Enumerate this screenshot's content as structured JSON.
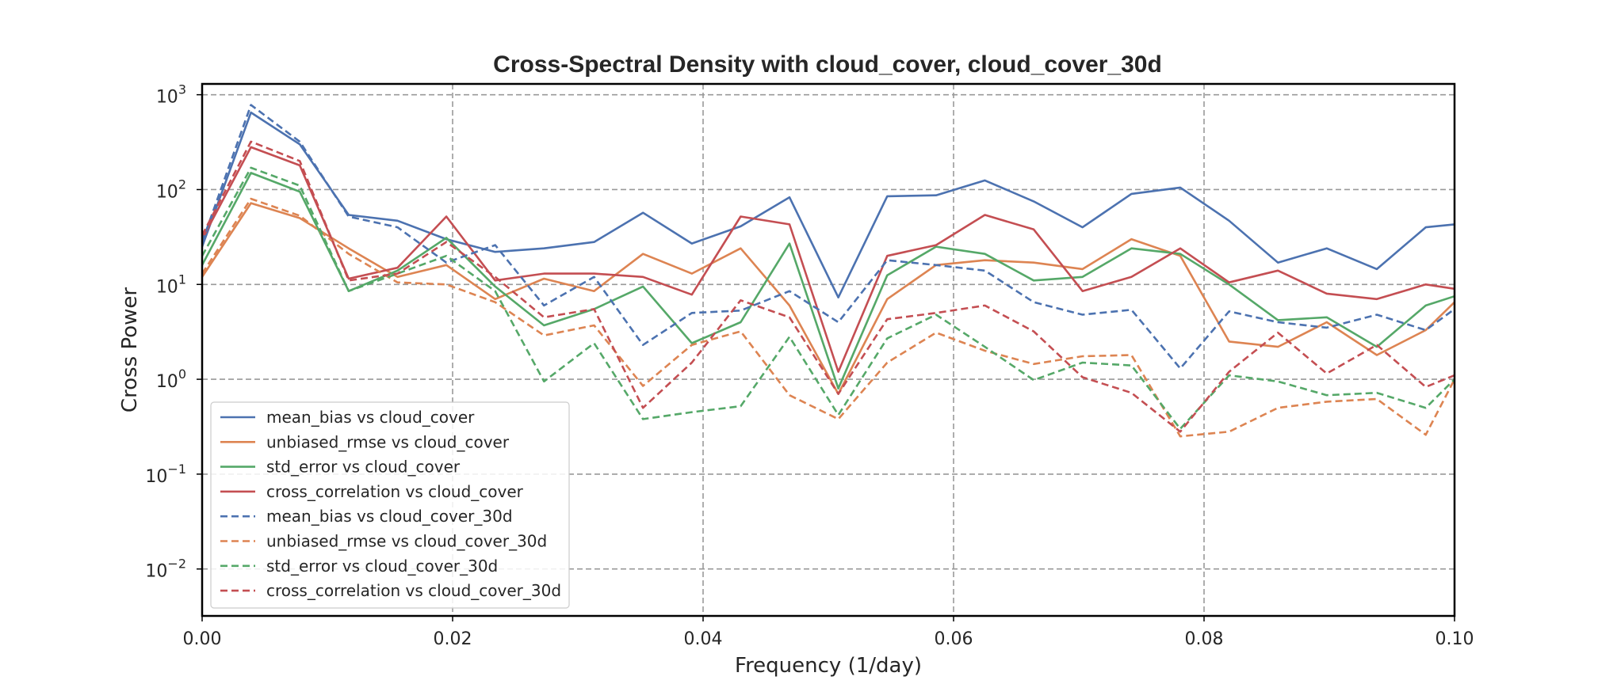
{
  "chart_data": {
    "type": "line",
    "title": "Cross-Spectral Density with cloud_cover, cloud_cover_30d",
    "xlabel": "Frequency (1/day)",
    "ylabel": "Cross Power",
    "xlim": [
      0,
      0.1
    ],
    "ylim": [
      0.0032,
      1300
    ],
    "yscale": "log",
    "grid": true,
    "legend_position": "lower-left",
    "x_ticks": [
      {
        "value": 0.0,
        "label": "0.00"
      },
      {
        "value": 0.02,
        "label": "0.02"
      },
      {
        "value": 0.04,
        "label": "0.04"
      },
      {
        "value": 0.06,
        "label": "0.06"
      },
      {
        "value": 0.08,
        "label": "0.08"
      },
      {
        "value": 0.1,
        "label": "0.10"
      }
    ],
    "y_ticks": [
      {
        "value": 0.01,
        "base": "10",
        "exp": "−2"
      },
      {
        "value": 0.1,
        "base": "10",
        "exp": "−1"
      },
      {
        "value": 1,
        "base": "10",
        "exp": "0"
      },
      {
        "value": 10,
        "base": "10",
        "exp": "1"
      },
      {
        "value": 100,
        "base": "10",
        "exp": "2"
      },
      {
        "value": 1000,
        "base": "10",
        "exp": "3"
      }
    ],
    "x": [
      0.0,
      0.0039,
      0.0078,
      0.0117,
      0.0156,
      0.0195,
      0.0234,
      0.0273,
      0.0313,
      0.0352,
      0.0391,
      0.043,
      0.0469,
      0.0508,
      0.0547,
      0.0586,
      0.0625,
      0.0664,
      0.0703,
      0.0742,
      0.0781,
      0.082,
      0.0859,
      0.0898,
      0.0938,
      0.0977,
      0.1
    ],
    "series": [
      {
        "name": "mean_bias vs cloud_cover",
        "color": "#4c72b0",
        "dash": "solid",
        "values": [
          25,
          650,
          300,
          54,
          47,
          30,
          22,
          24,
          28,
          57,
          27,
          41,
          83,
          7.3,
          85,
          87,
          125,
          75,
          40,
          90,
          105,
          47,
          17,
          24,
          14.5,
          40,
          43
        ]
      },
      {
        "name": "unbiased_rmse vs cloud_cover",
        "color": "#dd8452",
        "dash": "solid",
        "values": [
          12,
          72,
          50,
          24,
          12,
          16,
          7,
          11.5,
          8.5,
          21,
          13,
          24,
          6,
          0.7,
          7,
          16,
          18,
          17,
          14.5,
          30,
          20,
          2.5,
          2.2,
          4,
          1.8,
          3.3,
          6.5
        ]
      },
      {
        "name": "std_error vs cloud_cover",
        "color": "#55a868",
        "dash": "solid",
        "values": [
          16,
          150,
          95,
          8.5,
          14,
          31,
          9.5,
          3.7,
          5.5,
          9.5,
          2.4,
          4,
          27,
          0.8,
          12.5,
          25,
          21,
          11,
          12,
          24,
          21,
          10,
          4.2,
          4.5,
          2.2,
          6,
          7.5
        ]
      },
      {
        "name": "cross_correlation vs cloud_cover",
        "color": "#c44e52",
        "dash": "solid",
        "values": [
          30,
          280,
          180,
          11.5,
          15,
          52,
          11,
          13,
          13,
          12,
          7.8,
          52,
          43,
          1.2,
          20,
          26,
          54,
          38,
          8.5,
          12,
          24,
          10.5,
          14,
          8,
          7,
          10,
          9
        ]
      },
      {
        "name": "mean_bias vs cloud_cover_30d",
        "color": "#4c72b0",
        "dash": "dashed",
        "values": [
          28,
          780,
          320,
          52,
          40,
          17,
          26,
          6,
          12,
          2.3,
          5,
          5.3,
          8.5,
          4,
          18,
          16,
          14,
          6.5,
          4.8,
          5.4,
          1.3,
          5.2,
          4,
          3.5,
          4.8,
          3.3,
          5.5
        ]
      },
      {
        "name": "unbiased_rmse vs cloud_cover_30d",
        "color": "#dd8452",
        "dash": "dashed",
        "values": [
          13,
          80,
          53,
          21,
          10.5,
          10,
          6.5,
          2.9,
          3.7,
          0.85,
          2.3,
          3.2,
          0.68,
          0.38,
          1.5,
          3.1,
          2,
          1.45,
          1.75,
          1.8,
          0.25,
          0.28,
          0.5,
          0.58,
          0.62,
          0.26,
          1
        ]
      },
      {
        "name": "std_error vs cloud_cover_30d",
        "color": "#55a868",
        "dash": "dashed",
        "values": [
          20,
          170,
          110,
          8.5,
          13,
          20,
          8.5,
          0.95,
          2.4,
          0.38,
          0.45,
          0.52,
          2.8,
          0.42,
          2.7,
          4.8,
          2.2,
          0.98,
          1.5,
          1.4,
          0.3,
          1.1,
          0.95,
          0.68,
          0.72,
          0.5,
          1
        ]
      },
      {
        "name": "cross_correlation vs cloud_cover_30d",
        "color": "#c44e52",
        "dash": "dashed",
        "values": [
          33,
          320,
          200,
          11,
          13,
          28,
          12,
          4.5,
          5.5,
          0.5,
          1.5,
          6.8,
          4.5,
          0.7,
          4.3,
          5,
          6,
          3.2,
          1.05,
          0.72,
          0.28,
          1.2,
          3.1,
          1.15,
          2.3,
          0.83,
          1.1
        ]
      }
    ]
  }
}
